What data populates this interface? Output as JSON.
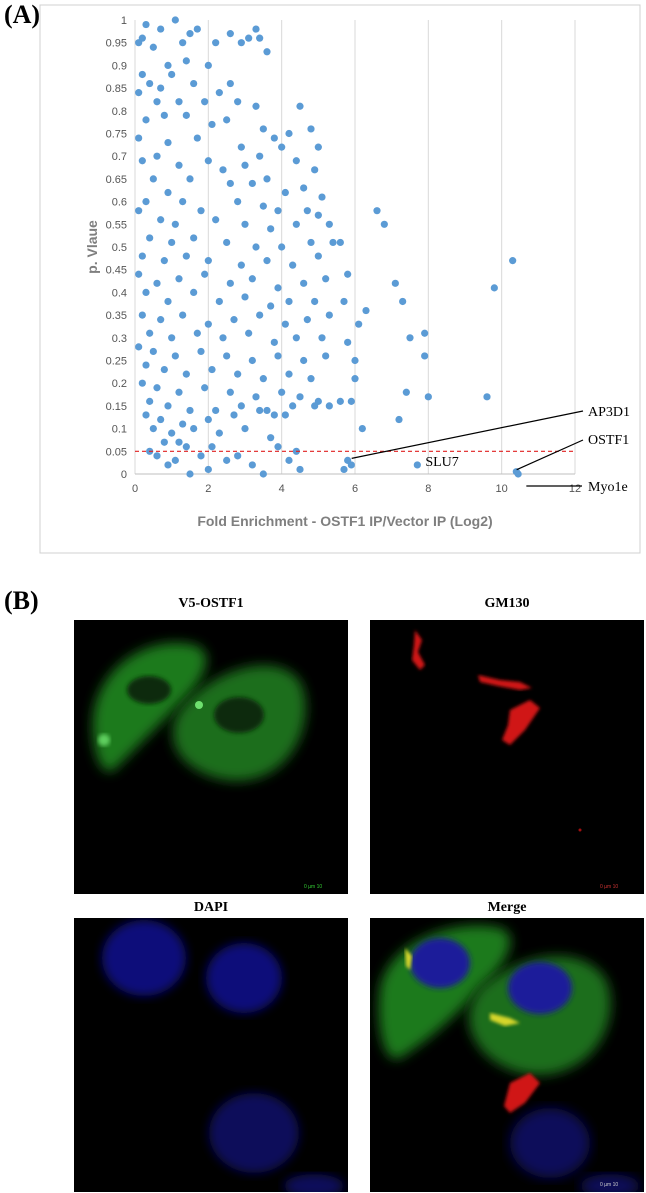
{
  "panels": {
    "a_label": "(A)",
    "b_label": "(B)"
  },
  "chart_data": {
    "type": "scatter",
    "xlabel": "Fold Enrichment - OSTF1 IP/Vector IP (Log2)",
    "ylabel": "p. Vlaue",
    "xlim": [
      0,
      12
    ],
    "ylim": [
      0,
      1
    ],
    "x_ticks": [
      "0",
      "2",
      "4",
      "6",
      "8",
      "10",
      "12"
    ],
    "y_ticks": [
      "0",
      "0.05",
      "0.1",
      "0.15",
      "0.2",
      "0.25",
      "0.3",
      "0.35",
      "0.4",
      "0.45",
      "0.5",
      "0.55",
      "0.6",
      "0.65",
      "0.7",
      "0.75",
      "0.8",
      "0.85",
      "0.9",
      "0.95",
      "1"
    ],
    "grid": "vertical",
    "threshold": {
      "y": 0.05,
      "color": "#e02020",
      "style": "dashed"
    },
    "point_color": "#5b9bd5",
    "annotations": [
      {
        "text": "AP3D1",
        "x": 5.8,
        "y": 0.03
      },
      {
        "text": "SLU7",
        "x": 7.7,
        "y": 0.02
      },
      {
        "text": "OSTF1",
        "x": 10.3,
        "y": 0.005
      },
      {
        "text": "Myo1e",
        "x": 10.4,
        "y": 0.0
      }
    ],
    "points": [
      [
        10.3,
        0.47
      ],
      [
        9.8,
        0.41
      ],
      [
        9.6,
        0.17
      ],
      [
        8.0,
        0.17
      ],
      [
        7.9,
        0.31
      ],
      [
        7.9,
        0.26
      ],
      [
        7.5,
        0.3
      ],
      [
        7.4,
        0.18
      ],
      [
        7.3,
        0.38
      ],
      [
        7.2,
        0.12
      ],
      [
        7.1,
        0.42
      ],
      [
        6.8,
        0.55
      ],
      [
        6.6,
        0.58
      ],
      [
        6.2,
        0.1
      ],
      [
        6.0,
        0.25
      ],
      [
        6.0,
        0.21
      ],
      [
        6.3,
        0.36
      ],
      [
        6.1,
        0.33
      ],
      [
        5.9,
        0.16
      ],
      [
        5.6,
        0.51
      ],
      [
        5.7,
        0.38
      ],
      [
        5.8,
        0.29
      ],
      [
        5.8,
        0.44
      ],
      [
        5.6,
        0.16
      ],
      [
        7.7,
        0.02
      ],
      [
        5.8,
        0.03
      ],
      [
        5.7,
        0.01
      ],
      [
        10.4,
        0.005
      ],
      [
        10.45,
        0.0
      ],
      [
        5.9,
        0.02
      ],
      [
        1.1,
        1.0
      ],
      [
        0.3,
        0.99
      ],
      [
        0.7,
        0.98
      ],
      [
        1.7,
        0.98
      ],
      [
        2.6,
        0.97
      ],
      [
        3.3,
        0.98
      ],
      [
        3.4,
        0.96
      ],
      [
        0.1,
        0.95
      ],
      [
        0.5,
        0.94
      ],
      [
        1.3,
        0.95
      ],
      [
        2.2,
        0.95
      ],
      [
        2.9,
        0.95
      ],
      [
        3.1,
        0.96
      ],
      [
        3.6,
        0.93
      ],
      [
        0.2,
        0.96
      ],
      [
        1.5,
        0.97
      ],
      [
        0.2,
        0.88
      ],
      [
        0.9,
        0.9
      ],
      [
        1.4,
        0.91
      ],
      [
        2.0,
        0.9
      ],
      [
        0.4,
        0.86
      ],
      [
        0.7,
        0.85
      ],
      [
        1.0,
        0.88
      ],
      [
        1.6,
        0.86
      ],
      [
        2.6,
        0.86
      ],
      [
        0.1,
        0.84
      ],
      [
        0.6,
        0.82
      ],
      [
        1.2,
        0.82
      ],
      [
        1.9,
        0.82
      ],
      [
        2.3,
        0.84
      ],
      [
        2.8,
        0.82
      ],
      [
        4.5,
        0.81
      ],
      [
        3.3,
        0.81
      ],
      [
        0.3,
        0.78
      ],
      [
        0.8,
        0.79
      ],
      [
        1.4,
        0.79
      ],
      [
        2.1,
        0.77
      ],
      [
        2.5,
        0.78
      ],
      [
        3.5,
        0.76
      ],
      [
        3.8,
        0.74
      ],
      [
        4.2,
        0.75
      ],
      [
        4.8,
        0.76
      ],
      [
        0.1,
        0.74
      ],
      [
        0.9,
        0.73
      ],
      [
        1.7,
        0.74
      ],
      [
        2.9,
        0.72
      ],
      [
        4.0,
        0.72
      ],
      [
        5.0,
        0.72
      ],
      [
        0.2,
        0.69
      ],
      [
        0.6,
        0.7
      ],
      [
        1.2,
        0.68
      ],
      [
        2.0,
        0.69
      ],
      [
        2.4,
        0.67
      ],
      [
        3.0,
        0.68
      ],
      [
        3.4,
        0.7
      ],
      [
        4.4,
        0.69
      ],
      [
        4.9,
        0.67
      ],
      [
        0.5,
        0.65
      ],
      [
        1.5,
        0.65
      ],
      [
        2.6,
        0.64
      ],
      [
        3.2,
        0.64
      ],
      [
        3.6,
        0.65
      ],
      [
        4.1,
        0.62
      ],
      [
        4.6,
        0.63
      ],
      [
        5.1,
        0.61
      ],
      [
        0.3,
        0.6
      ],
      [
        0.9,
        0.62
      ],
      [
        1.3,
        0.6
      ],
      [
        1.8,
        0.58
      ],
      [
        2.8,
        0.6
      ],
      [
        3.5,
        0.59
      ],
      [
        3.9,
        0.58
      ],
      [
        4.7,
        0.58
      ],
      [
        5.0,
        0.57
      ],
      [
        0.1,
        0.58
      ],
      [
        0.7,
        0.56
      ],
      [
        1.1,
        0.55
      ],
      [
        2.2,
        0.56
      ],
      [
        3.0,
        0.55
      ],
      [
        3.7,
        0.54
      ],
      [
        4.4,
        0.55
      ],
      [
        5.3,
        0.55
      ],
      [
        0.4,
        0.52
      ],
      [
        1.0,
        0.51
      ],
      [
        1.6,
        0.52
      ],
      [
        2.5,
        0.51
      ],
      [
        3.3,
        0.5
      ],
      [
        4.0,
        0.5
      ],
      [
        4.8,
        0.51
      ],
      [
        5.4,
        0.51
      ],
      [
        0.2,
        0.48
      ],
      [
        0.8,
        0.47
      ],
      [
        1.4,
        0.48
      ],
      [
        2.0,
        0.47
      ],
      [
        2.9,
        0.46
      ],
      [
        3.6,
        0.47
      ],
      [
        4.3,
        0.46
      ],
      [
        5.0,
        0.48
      ],
      [
        0.1,
        0.44
      ],
      [
        0.6,
        0.42
      ],
      [
        1.2,
        0.43
      ],
      [
        1.9,
        0.44
      ],
      [
        2.6,
        0.42
      ],
      [
        3.2,
        0.43
      ],
      [
        3.9,
        0.41
      ],
      [
        4.6,
        0.42
      ],
      [
        5.2,
        0.43
      ],
      [
        0.3,
        0.4
      ],
      [
        0.9,
        0.38
      ],
      [
        1.6,
        0.4
      ],
      [
        2.3,
        0.38
      ],
      [
        3.0,
        0.39
      ],
      [
        3.7,
        0.37
      ],
      [
        4.2,
        0.38
      ],
      [
        4.9,
        0.38
      ],
      [
        0.2,
        0.35
      ],
      [
        0.7,
        0.34
      ],
      [
        1.3,
        0.35
      ],
      [
        2.0,
        0.33
      ],
      [
        2.7,
        0.34
      ],
      [
        3.4,
        0.35
      ],
      [
        4.1,
        0.33
      ],
      [
        4.7,
        0.34
      ],
      [
        5.3,
        0.35
      ],
      [
        0.4,
        0.31
      ],
      [
        1.0,
        0.3
      ],
      [
        1.7,
        0.31
      ],
      [
        2.4,
        0.3
      ],
      [
        3.1,
        0.31
      ],
      [
        3.8,
        0.29
      ],
      [
        4.4,
        0.3
      ],
      [
        5.1,
        0.3
      ],
      [
        0.1,
        0.28
      ],
      [
        0.5,
        0.27
      ],
      [
        1.1,
        0.26
      ],
      [
        1.8,
        0.27
      ],
      [
        2.5,
        0.26
      ],
      [
        3.2,
        0.25
      ],
      [
        3.9,
        0.26
      ],
      [
        4.6,
        0.25
      ],
      [
        5.2,
        0.26
      ],
      [
        0.3,
        0.24
      ],
      [
        0.8,
        0.23
      ],
      [
        1.4,
        0.22
      ],
      [
        2.1,
        0.23
      ],
      [
        2.8,
        0.22
      ],
      [
        3.5,
        0.21
      ],
      [
        4.2,
        0.22
      ],
      [
        4.8,
        0.21
      ],
      [
        0.2,
        0.2
      ],
      [
        0.6,
        0.19
      ],
      [
        1.2,
        0.18
      ],
      [
        1.9,
        0.19
      ],
      [
        2.6,
        0.18
      ],
      [
        3.3,
        0.17
      ],
      [
        4.0,
        0.18
      ],
      [
        4.5,
        0.17
      ],
      [
        5.0,
        0.16
      ],
      [
        0.4,
        0.16
      ],
      [
        0.9,
        0.15
      ],
      [
        1.5,
        0.14
      ],
      [
        2.2,
        0.14
      ],
      [
        2.9,
        0.15
      ],
      [
        3.6,
        0.14
      ],
      [
        4.3,
        0.15
      ],
      [
        5.3,
        0.15
      ],
      [
        0.3,
        0.13
      ],
      [
        0.7,
        0.12
      ],
      [
        1.3,
        0.11
      ],
      [
        2.0,
        0.12
      ],
      [
        2.7,
        0.13
      ],
      [
        3.4,
        0.14
      ],
      [
        3.8,
        0.13
      ],
      [
        4.1,
        0.13
      ],
      [
        4.9,
        0.15
      ],
      [
        0.5,
        0.1
      ],
      [
        1.0,
        0.09
      ],
      [
        1.6,
        0.1
      ],
      [
        2.3,
        0.09
      ],
      [
        3.0,
        0.1
      ],
      [
        3.7,
        0.08
      ],
      [
        0.8,
        0.07
      ],
      [
        1.4,
        0.06
      ],
      [
        2.1,
        0.06
      ],
      [
        0.6,
        0.04
      ],
      [
        1.1,
        0.03
      ],
      [
        1.8,
        0.04
      ],
      [
        2.5,
        0.03
      ],
      [
        3.2,
        0.02
      ],
      [
        4.2,
        0.03
      ],
      [
        4.5,
        0.01
      ],
      [
        0.9,
        0.02
      ],
      [
        2.0,
        0.01
      ],
      [
        3.5,
        0.0
      ],
      [
        1.5,
        0.0
      ],
      [
        0.4,
        0.05
      ],
      [
        2.8,
        0.04
      ],
      [
        4.4,
        0.05
      ],
      [
        1.2,
        0.07
      ],
      [
        3.9,
        0.06
      ]
    ]
  },
  "micrographs": [
    {
      "title": "V5-OSTF1",
      "scale": "0  µm  10",
      "scale_color": "#33cc33"
    },
    {
      "title": "GM130",
      "scale": "0  µm  10",
      "scale_color": "#cc3333"
    },
    {
      "title": "DAPI",
      "scale": "",
      "scale_color": "#3333cc"
    },
    {
      "title": "Merge",
      "scale": "0  µm  10",
      "scale_color": "#cccccc"
    }
  ]
}
